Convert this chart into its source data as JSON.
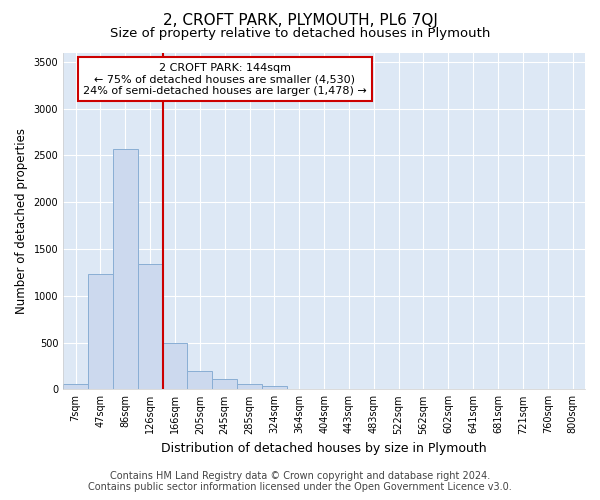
{
  "title": "2, CROFT PARK, PLYMOUTH, PL6 7QJ",
  "subtitle": "Size of property relative to detached houses in Plymouth",
  "xlabel": "Distribution of detached houses by size in Plymouth",
  "ylabel": "Number of detached properties",
  "categories": [
    "7sqm",
    "47sqm",
    "86sqm",
    "126sqm",
    "166sqm",
    "205sqm",
    "245sqm",
    "285sqm",
    "324sqm",
    "364sqm",
    "404sqm",
    "443sqm",
    "483sqm",
    "522sqm",
    "562sqm",
    "602sqm",
    "641sqm",
    "681sqm",
    "721sqm",
    "760sqm",
    "800sqm"
  ],
  "values": [
    55,
    1230,
    2570,
    1340,
    490,
    195,
    115,
    55,
    30,
    8,
    0,
    0,
    0,
    0,
    0,
    0,
    0,
    0,
    0,
    0,
    0
  ],
  "bar_color": "#ccd9ee",
  "bar_edge_color": "#89aed4",
  "vline_color": "#cc0000",
  "annotation_text": "2 CROFT PARK: 144sqm\n← 75% of detached houses are smaller (4,530)\n24% of semi-detached houses are larger (1,478) →",
  "annotation_box_facecolor": "white",
  "annotation_box_edgecolor": "#cc0000",
  "ylim": [
    0,
    3600
  ],
  "yticks": [
    0,
    500,
    1000,
    1500,
    2000,
    2500,
    3000,
    3500
  ],
  "fig_facecolor": "white",
  "plot_bg_color": "#dde8f5",
  "title_fontsize": 11,
  "subtitle_fontsize": 9.5,
  "ylabel_fontsize": 8.5,
  "xlabel_fontsize": 9,
  "tick_fontsize": 7,
  "annotation_fontsize": 8,
  "footer_fontsize": 7,
  "footer_line1": "Contains HM Land Registry data © Crown copyright and database right 2024.",
  "footer_line2": "Contains public sector information licensed under the Open Government Licence v3.0."
}
